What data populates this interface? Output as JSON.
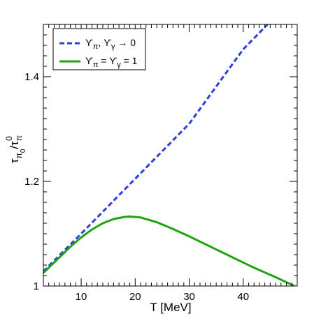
{
  "chart_data": {
    "type": "line",
    "title": "",
    "xlabel": "T [MeV]",
    "ylabel": {
      "base": "τ",
      "sub1": "π",
      "sub2": "0",
      "slash": "/τ",
      "sub3": "π",
      "sup": "0"
    },
    "xlim": [
      3,
      50
    ],
    "ylim": [
      1.0,
      1.5
    ],
    "xticks": [
      10,
      20,
      30,
      40
    ],
    "yticks": [
      1,
      1.2,
      1.4
    ],
    "xtick_labels": [
      "10",
      "20",
      "30",
      "40"
    ],
    "ytick_labels": [
      "1",
      "1.2",
      "1.4"
    ],
    "grid": false,
    "legend_position": "top-left",
    "series": [
      {
        "name": "ϒπ, ϒγ → 0",
        "legend": {
          "a": "ϒ",
          "a_sub": "π",
          "sep": ", ",
          "b": "ϒ",
          "b_sub": "γ",
          "rest": " → 0"
        },
        "color": "#2a3fe0",
        "dash": true,
        "x": [
          3,
          10,
          20,
          30,
          40,
          44.5
        ],
        "y": [
          1.028,
          1.1,
          1.205,
          1.31,
          1.4525,
          1.5
        ]
      },
      {
        "name": "ϒπ = ϒγ = 1",
        "legend": {
          "a": "ϒ",
          "a_sub": "π",
          "sep": " = ",
          "b": "ϒ",
          "b_sub": "γ",
          "rest": " = 1"
        },
        "color": "#1fa30e",
        "dash": false,
        "x": [
          3,
          5,
          8,
          10,
          12,
          14,
          16,
          18,
          19,
          21,
          24,
          27,
          30,
          34,
          38,
          42,
          46,
          49.5
        ],
        "y": [
          1.025,
          1.045,
          1.075,
          1.093,
          1.108,
          1.12,
          1.128,
          1.132,
          1.133,
          1.131,
          1.122,
          1.109,
          1.095,
          1.075,
          1.055,
          1.035,
          1.017,
          1.0
        ]
      }
    ]
  }
}
